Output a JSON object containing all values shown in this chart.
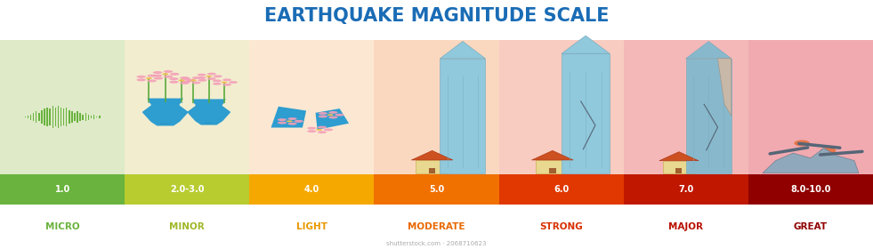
{
  "title": "EARTHQUAKE MAGNITUDE SCALE",
  "title_color": "#1a6cb5",
  "title_fontsize": 15,
  "background_color": "#ffffff",
  "segments": [
    {
      "label": "MICRO",
      "magnitude": "1.0",
      "bar_color": "#6ab33e",
      "bg_color": "#deeac8",
      "text_color": "#6ab33e"
    },
    {
      "label": "MINOR",
      "magnitude": "2.0-3.0",
      "bar_color": "#b8cc30",
      "bg_color": "#f2edcf",
      "text_color": "#a0b828"
    },
    {
      "label": "LIGHT",
      "magnitude": "4.0",
      "bar_color": "#f5a800",
      "bg_color": "#fce8d2",
      "text_color": "#e89800"
    },
    {
      "label": "MODERATE",
      "magnitude": "5.0",
      "bar_color": "#f07000",
      "bg_color": "#fad8c0",
      "text_color": "#e86800"
    },
    {
      "label": "STRONG",
      "magnitude": "6.0",
      "bar_color": "#e03800",
      "bg_color": "#f8ccc0",
      "text_color": "#d83000"
    },
    {
      "label": "MAJOR",
      "magnitude": "7.0",
      "bar_color": "#c01800",
      "bg_color": "#f4b8b8",
      "text_color": "#b81000"
    },
    {
      "label": "GREAT",
      "magnitude": "8.0-10.0",
      "bar_color": "#900000",
      "bg_color": "#f0aab0",
      "text_color": "#900000"
    }
  ]
}
